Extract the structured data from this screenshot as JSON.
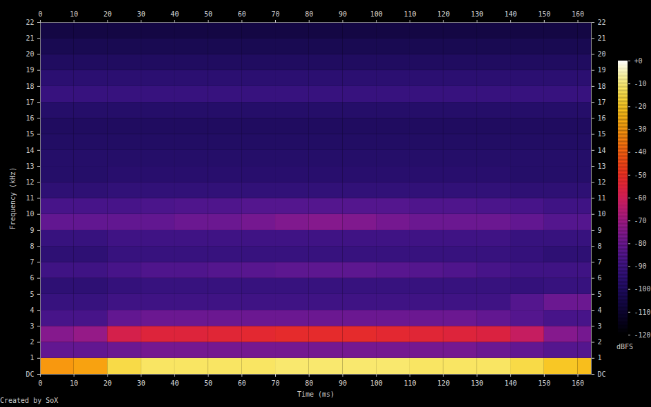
{
  "chart_data": {
    "type": "heatmap",
    "x_label": "Time (ms)",
    "y_label": "Frequency (kHz)",
    "xlim": [
      0,
      164
    ],
    "xticks": [
      0,
      10,
      20,
      30,
      40,
      50,
      60,
      70,
      80,
      90,
      100,
      110,
      120,
      130,
      140,
      150,
      160
    ],
    "ylim": [
      0,
      22
    ],
    "yticks": [
      {
        "value": 0,
        "label": "DC"
      },
      1,
      2,
      3,
      4,
      5,
      6,
      7,
      8,
      9,
      10,
      11,
      12,
      13,
      14,
      15,
      16,
      17,
      18,
      19,
      20,
      21,
      22
    ],
    "time_edges": [
      0,
      10,
      20,
      30,
      40,
      50,
      60,
      70,
      80,
      90,
      100,
      110,
      120,
      130,
      140,
      150,
      160,
      164
    ],
    "frequency_edges": [
      0,
      1,
      2,
      3,
      4,
      5,
      6,
      7,
      8,
      9,
      10,
      11,
      12,
      13,
      14,
      15,
      16,
      17,
      18,
      19,
      20,
      21,
      22
    ],
    "cells": [
      [
        -30,
        -28,
        -15,
        -12,
        -12,
        -12,
        -12,
        -11,
        -11,
        -11,
        -11,
        -12,
        -12,
        -12,
        -15,
        -20,
        -22
      ],
      [
        -82,
        -82,
        -80,
        -78,
        -78,
        -78,
        -78,
        -78,
        -78,
        -78,
        -78,
        -78,
        -78,
        -80,
        -82,
        -85,
        -85
      ],
      [
        -75,
        -72,
        -58,
        -55,
        -55,
        -54,
        -53,
        -52,
        -52,
        -52,
        -53,
        -54,
        -55,
        -56,
        -62,
        -75,
        -78
      ],
      [
        -88,
        -88,
        -82,
        -80,
        -80,
        -80,
        -80,
        -80,
        -80,
        -80,
        -80,
        -80,
        -80,
        -82,
        -85,
        -88,
        -88
      ],
      [
        -92,
        -92,
        -90,
        -90,
        -90,
        -90,
        -90,
        -90,
        -90,
        -90,
        -90,
        -90,
        -90,
        -90,
        -85,
        -80,
        -80
      ],
      [
        -95,
        -95,
        -93,
        -92,
        -92,
        -92,
        -92,
        -92,
        -92,
        -92,
        -92,
        -92,
        -92,
        -92,
        -93,
        -92,
        -92
      ],
      [
        -90,
        -90,
        -88,
        -86,
        -86,
        -85,
        -84,
        -83,
        -83,
        -83,
        -84,
        -85,
        -86,
        -88,
        -90,
        -90,
        -90
      ],
      [
        -95,
        -95,
        -92,
        -92,
        -92,
        -92,
        -92,
        -92,
        -92,
        -92,
        -92,
        -92,
        -92,
        -92,
        -93,
        -95,
        -95
      ],
      [
        -92,
        -92,
        -90,
        -90,
        -90,
        -90,
        -90,
        -90,
        -90,
        -90,
        -90,
        -90,
        -90,
        -90,
        -92,
        -92,
        -92
      ],
      [
        -82,
        -82,
        -82,
        -82,
        -80,
        -80,
        -78,
        -76,
        -75,
        -76,
        -78,
        -80,
        -80,
        -80,
        -82,
        -85,
        -85
      ],
      [
        -88,
        -88,
        -88,
        -87,
        -86,
        -86,
        -85,
        -85,
        -85,
        -85,
        -85,
        -86,
        -86,
        -87,
        -88,
        -90,
        -90
      ],
      [
        -95,
        -95,
        -94,
        -94,
        -94,
        -94,
        -94,
        -94,
        -94,
        -94,
        -94,
        -94,
        -94,
        -94,
        -95,
        -95,
        -95
      ],
      [
        -98,
        -98,
        -97,
        -97,
        -97,
        -97,
        -97,
        -97,
        -97,
        -97,
        -97,
        -97,
        -97,
        -97,
        -98,
        -98,
        -98
      ],
      [
        -98,
        -98,
        -98,
        -98,
        -98,
        -98,
        -98,
        -98,
        -98,
        -98,
        -98,
        -98,
        -98,
        -98,
        -98,
        -98,
        -98
      ],
      [
        -99,
        -99,
        -99,
        -99,
        -99,
        -99,
        -99,
        -99,
        -99,
        -99,
        -99,
        -99,
        -99,
        -99,
        -99,
        -99,
        -99
      ],
      [
        -100,
        -100,
        -100,
        -100,
        -100,
        -100,
        -100,
        -100,
        -100,
        -100,
        -100,
        -100,
        -100,
        -100,
        -100,
        -100,
        -100
      ],
      [
        -98,
        -98,
        -98,
        -98,
        -98,
        -98,
        -98,
        -98,
        -98,
        -98,
        -98,
        -98,
        -98,
        -98,
        -98,
        -98,
        -98
      ],
      [
        -92,
        -92,
        -92,
        -92,
        -92,
        -92,
        -92,
        -92,
        -92,
        -92,
        -92,
        -92,
        -92,
        -92,
        -92,
        -92,
        -92
      ],
      [
        -96,
        -96,
        -96,
        -96,
        -96,
        -96,
        -96,
        -96,
        -96,
        -96,
        -96,
        -96,
        -96,
        -96,
        -96,
        -96,
        -96
      ],
      [
        -100,
        -100,
        -100,
        -100,
        -100,
        -100,
        -100,
        -100,
        -100,
        -100,
        -100,
        -100,
        -100,
        -100,
        -100,
        -100,
        -100
      ],
      [
        -103,
        -103,
        -103,
        -103,
        -103,
        -103,
        -103,
        -103,
        -103,
        -103,
        -103,
        -103,
        -103,
        -103,
        -103,
        -103,
        -103
      ],
      [
        -106,
        -106,
        -106,
        -106,
        -106,
        -106,
        -106,
        -106,
        -106,
        -106,
        -106,
        -106,
        -106,
        -106,
        -106,
        -106,
        -106
      ]
    ],
    "colorbar": {
      "label": "dBFS",
      "range": [
        -120,
        0
      ],
      "ticks": [
        {
          "value": 0,
          "label": "+0"
        },
        -10,
        -20,
        -30,
        -40,
        -50,
        -60,
        -70,
        -80,
        -90,
        -100,
        -110,
        -120
      ]
    },
    "caption": "Created by SoX"
  }
}
